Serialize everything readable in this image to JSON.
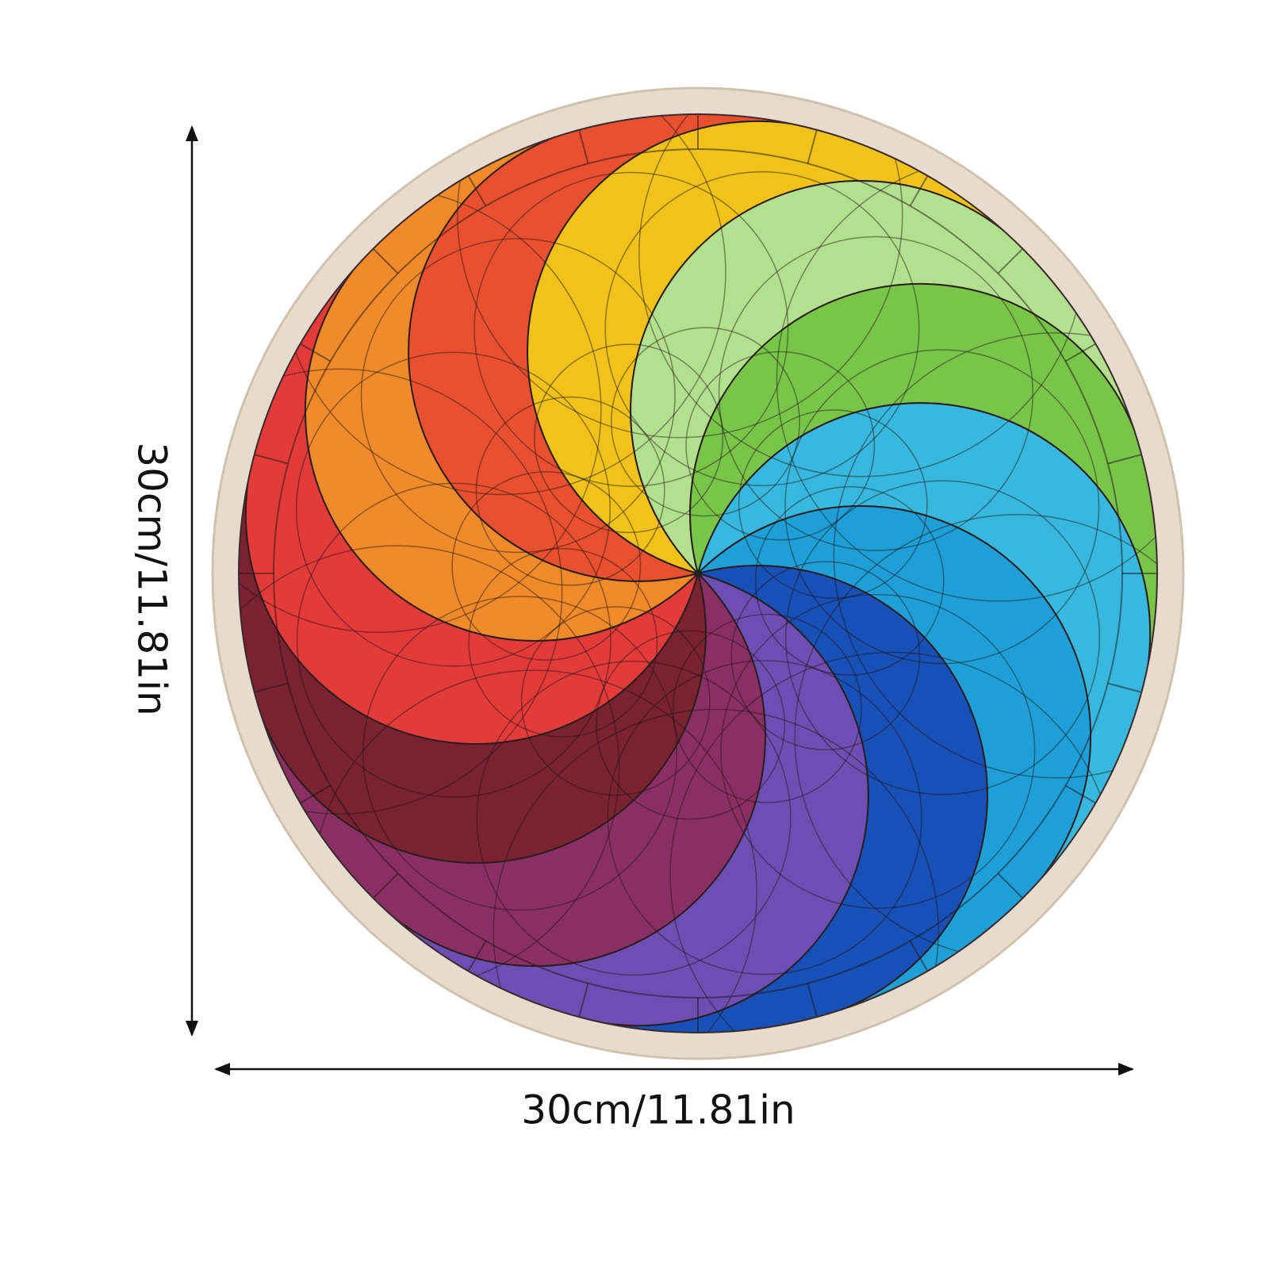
{
  "dimensions": {
    "height_label": "30cm/11.81in",
    "width_label": "30cm/11.81in"
  }
}
